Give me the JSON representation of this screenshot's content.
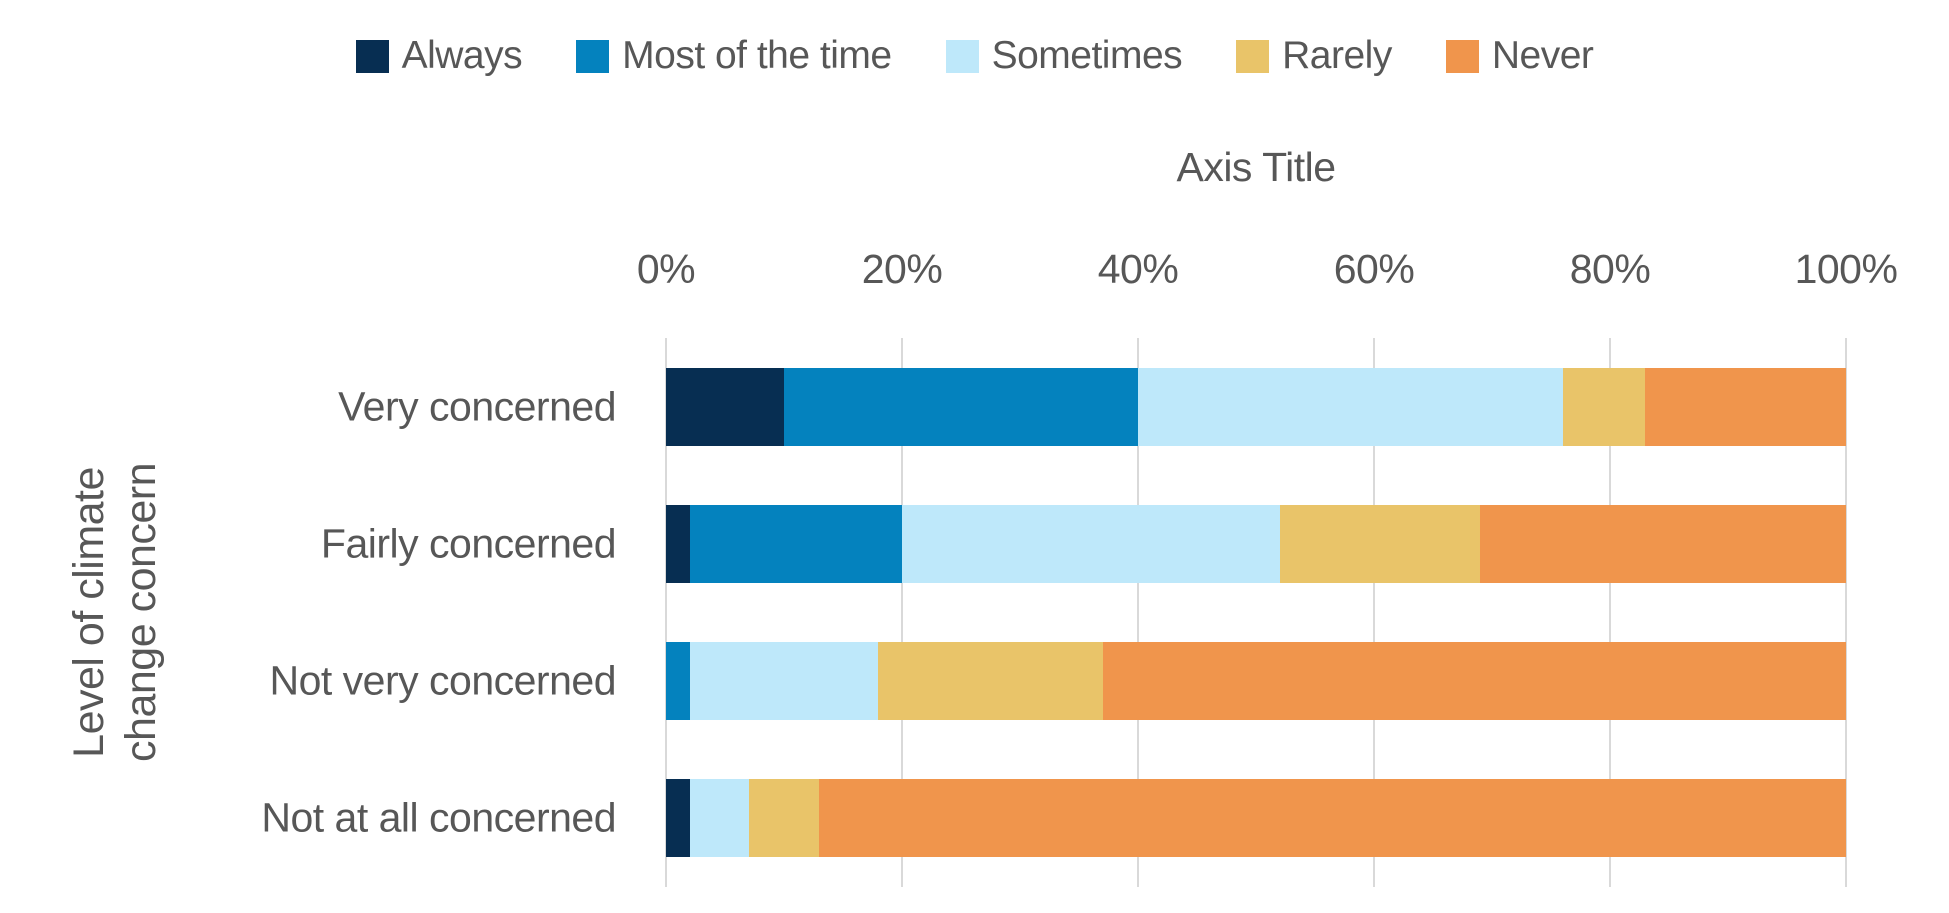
{
  "chart": {
    "axis_title": "Axis Title",
    "y_axis_title_line1": "Level of climate",
    "y_axis_title_line2": "change concern",
    "text_color": "#575757",
    "gridline_color": "#D9D9D9",
    "background_color": "#FFFFFF"
  },
  "chart_data": {
    "type": "bar",
    "orientation": "horizontal",
    "stacked": true,
    "title": "",
    "xlabel": "Axis Title",
    "ylabel": "Level of climate change concern",
    "xlim": [
      0,
      100
    ],
    "x_tick_step": 20,
    "grid": true,
    "legend_position": "top",
    "x_ticks": [
      "0%",
      "20%",
      "40%",
      "60%",
      "80%",
      "100%"
    ],
    "categories": [
      "Very concerned",
      "Fairly concerned",
      "Not very concerned",
      "Not at all concerned"
    ],
    "series": [
      {
        "name": "Always",
        "color": "#072E52",
        "values": [
          10,
          2,
          0,
          2
        ]
      },
      {
        "name": "Most of the time",
        "color": "#0482BE",
        "values": [
          30,
          18,
          2,
          0
        ]
      },
      {
        "name": "Sometimes",
        "color": "#BEE8FA",
        "values": [
          36,
          32,
          16,
          5
        ]
      },
      {
        "name": "Rarely",
        "color": "#E9C469",
        "values": [
          7,
          17,
          19,
          6
        ]
      },
      {
        "name": "Never",
        "color": "#F0954C",
        "values": [
          17,
          31,
          63,
          87
        ]
      }
    ]
  }
}
